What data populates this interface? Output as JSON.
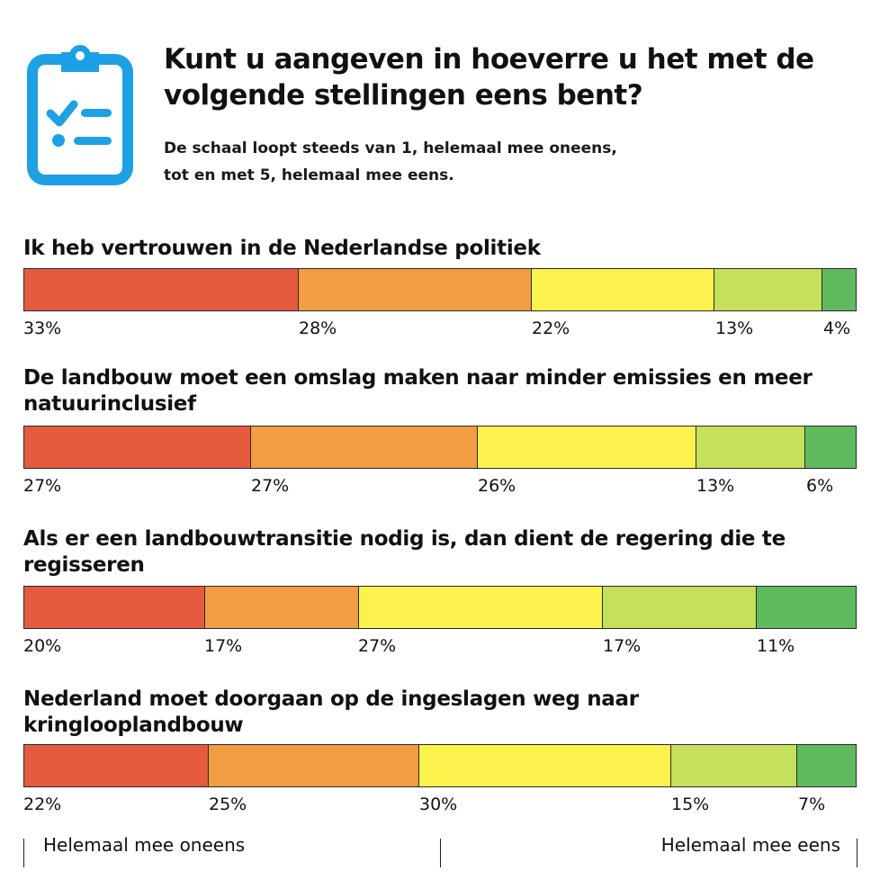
{
  "header": {
    "icon": "clipboard-checklist-icon",
    "title": "Kunt u aangeven in hoeverre u het met de volgende stellingen eens bent?",
    "subtitle_line1": "De schaal loopt steeds van 1, helemaal mee oneens,",
    "subtitle_line2": "tot en met 5, helemaal mee eens."
  },
  "colors": {
    "icon": "#1da1e4",
    "scale": [
      "#e65a3f",
      "#f29c43",
      "#fbf24e",
      "#c5e05a",
      "#5fbb5e"
    ]
  },
  "chart_data": {
    "type": "bar",
    "stacked": true,
    "orientation": "horizontal",
    "unit": "%",
    "categories": [
      "Ik heb vertrouwen in de Nederlandse politiek",
      "De landbouw moet een omslag maken naar minder emissies en meer natuurinclusief",
      "Als er een landbouwtransitie nodig is, dan dient de regering die te regisseren",
      "Nederland moet doorgaan op de ingeslagen weg naar kringlooplandbouw"
    ],
    "series": [
      {
        "values": [
          33,
          27,
          20,
          22
        ]
      },
      {
        "values": [
          28,
          27,
          17,
          25
        ]
      },
      {
        "values": [
          22,
          26,
          27,
          30
        ]
      },
      {
        "values": [
          13,
          13,
          17,
          15
        ]
      },
      {
        "values": [
          4,
          6,
          11,
          7
        ]
      }
    ]
  },
  "scale_labels": {
    "left": "Helemaal mee oneens",
    "right": "Helemaal mee eens"
  }
}
